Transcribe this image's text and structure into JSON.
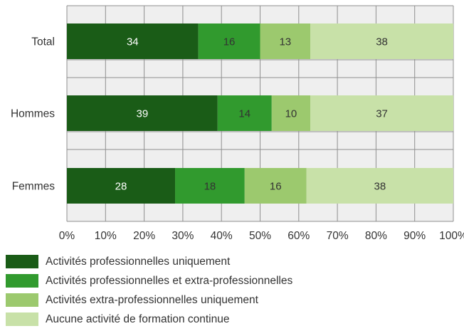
{
  "chart_data": {
    "type": "bar",
    "orientation": "horizontal",
    "stacked": true,
    "categories": [
      "Total",
      "Hommes",
      "Femmes"
    ],
    "series": [
      {
        "name": "Activités professionnelles uniquement",
        "values": [
          34,
          39,
          28
        ],
        "color": "#1a5c17"
      },
      {
        "name": "Activités professionnelles et extra-professionnelles",
        "values": [
          16,
          14,
          18
        ],
        "color": "#319a2e"
      },
      {
        "name": "Activités extra-professionnelles uniquement",
        "values": [
          13,
          10,
          16
        ],
        "color": "#9cc96e"
      },
      {
        "name": "Aucune activité de formation continue",
        "values": [
          38,
          37,
          38
        ],
        "color": "#c8e1a8"
      }
    ],
    "data_label_colors": [
      "#ffffff",
      "#333333",
      "#333333",
      "#333333"
    ],
    "xlim": [
      0,
      100
    ],
    "x_ticks": [
      "0%",
      "10%",
      "20%",
      "30%",
      "40%",
      "50%",
      "60%",
      "70%",
      "80%",
      "90%",
      "100%"
    ],
    "grid": true,
    "legend_position": "bottom",
    "title": "",
    "xlabel": "",
    "ylabel": ""
  }
}
